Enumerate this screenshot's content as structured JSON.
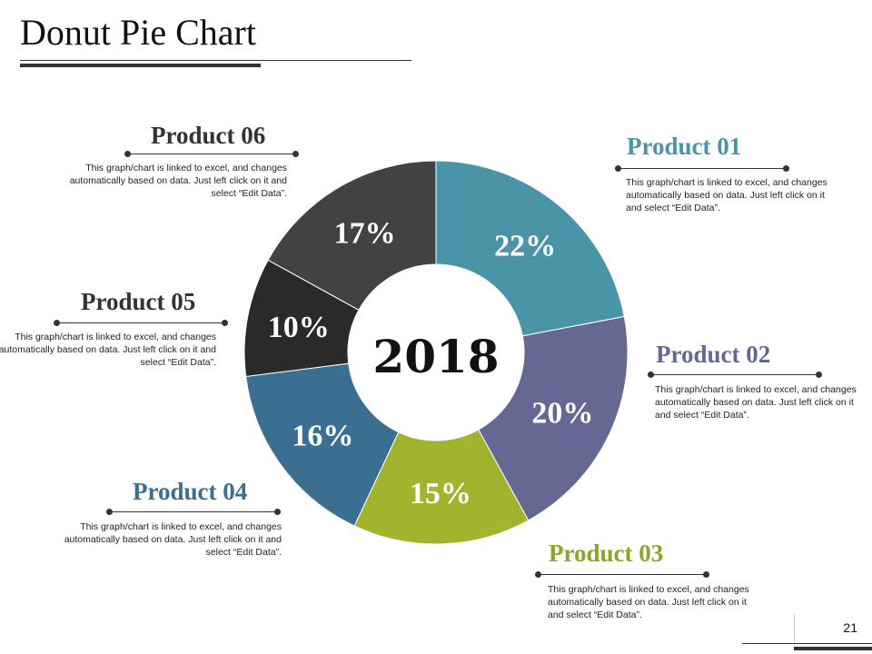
{
  "slide": {
    "title": "Donut Pie Chart",
    "page_number": "21"
  },
  "description_text": "This graph/chart is linked to excel, and changes automatically based on data. Just left click on it and select “Edit Data”.",
  "products": [
    {
      "name": "Product 01",
      "value": 22,
      "value_label": "22%",
      "color": "#4a94a8",
      "label_color": "#4a94a8"
    },
    {
      "name": "Product 02",
      "value": 20,
      "value_label": "20%",
      "color": "#646892",
      "label_color": "#646892"
    },
    {
      "name": "Product 03",
      "value": 15,
      "value_label": "15%",
      "color": "#a2b42e",
      "label_color": "#8ea32a"
    },
    {
      "name": "Product 04",
      "value": 16,
      "value_label": "16%",
      "color": "#3b6f91",
      "label_color": "#3b6f91"
    },
    {
      "name": "Product 05",
      "value": 10,
      "value_label": "10%",
      "color": "#2a2a2a",
      "label_color": "#333333"
    },
    {
      "name": "Product 06",
      "value": 17,
      "value_label": "17%",
      "color": "#424242",
      "label_color": "#333333"
    }
  ],
  "chart_data": {
    "type": "pie",
    "donut": true,
    "title": "Donut Pie Chart",
    "center_label": "2018",
    "categories": [
      "Product 01",
      "Product 02",
      "Product 03",
      "Product 04",
      "Product 05",
      "Product 06"
    ],
    "values": [
      22,
      20,
      15,
      16,
      10,
      17
    ],
    "unit": "%"
  }
}
